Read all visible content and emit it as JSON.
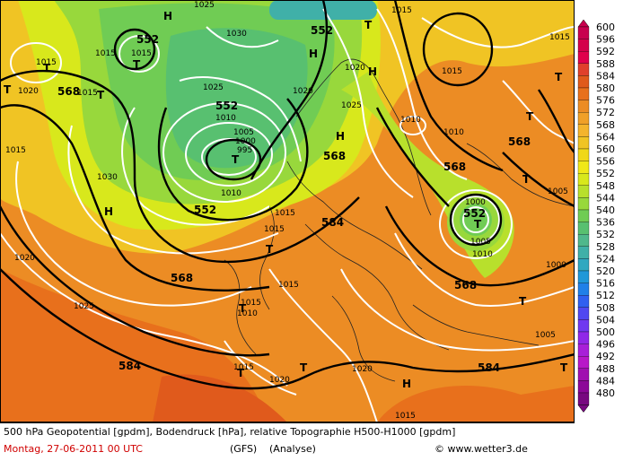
{
  "map": {
    "legend_values": [
      "600",
      "596",
      "592",
      "588",
      "584",
      "580",
      "576",
      "572",
      "568",
      "564",
      "560",
      "556",
      "552",
      "548",
      "544",
      "540",
      "536",
      "532",
      "528",
      "524",
      "520",
      "516",
      "512",
      "508",
      "504",
      "500",
      "496",
      "492",
      "488",
      "484",
      "480"
    ],
    "legend_colors": [
      "#c8004e",
      "#d4004a",
      "#e0004c",
      "#e0402c",
      "#e05a1c",
      "#e8701c",
      "#ec8c24",
      "#f0a028",
      "#f4b42c",
      "#f0c424",
      "#f0d818",
      "#f0e818",
      "#d8e81c",
      "#b8e02c",
      "#98d83c",
      "#70cc54",
      "#58c070",
      "#50b88c",
      "#40b0a8",
      "#30a8c0",
      "#2098d8",
      "#2080e8",
      "#3060f0",
      "#5048f0",
      "#7038f0",
      "#9028e8",
      "#a820d8",
      "#b818c8",
      "#a010b0",
      "#8c0898",
      "#780880"
    ],
    "geopotential_labels": [
      {
        "t": "552"
      },
      {
        "t": "552"
      },
      {
        "t": "552"
      },
      {
        "t": "552"
      },
      {
        "t": "552"
      },
      {
        "t": "568"
      },
      {
        "t": "568"
      },
      {
        "t": "568"
      },
      {
        "t": "568"
      },
      {
        "t": "568"
      },
      {
        "t": "568"
      },
      {
        "t": "584"
      },
      {
        "t": "584"
      },
      {
        "t": "584"
      }
    ],
    "pressure_labels": [
      {
        "t": "1025"
      },
      {
        "t": "1015"
      },
      {
        "t": "1015"
      },
      {
        "t": "1015"
      },
      {
        "t": "1030"
      },
      {
        "t": "1025"
      },
      {
        "t": "1020"
      },
      {
        "t": "1010"
      },
      {
        "t": "1005"
      },
      {
        "t": "1000"
      },
      {
        "t": "995"
      },
      {
        "t": "1010"
      },
      {
        "t": "1015"
      },
      {
        "t": "1015"
      },
      {
        "t": "1030"
      },
      {
        "t": "1020"
      },
      {
        "t": "1025"
      },
      {
        "t": "1015"
      },
      {
        "t": "1010"
      },
      {
        "t": "1015"
      },
      {
        "t": "1015"
      },
      {
        "t": "1015"
      },
      {
        "t": "1000"
      },
      {
        "t": "1005"
      },
      {
        "t": "1010"
      },
      {
        "t": "1000"
      },
      {
        "t": "1005"
      },
      {
        "t": "1005"
      },
      {
        "t": "1020"
      },
      {
        "t": "1020"
      },
      {
        "t": "1015"
      },
      {
        "t": "1015"
      },
      {
        "t": "1015"
      },
      {
        "t": "1010"
      },
      {
        "t": "1015"
      },
      {
        "t": "1025"
      },
      {
        "t": "1020"
      },
      {
        "t": "1020"
      },
      {
        "t": "1010"
      },
      {
        "t": "1015"
      }
    ],
    "centers": [
      {
        "t": "H"
      },
      {
        "t": "H"
      },
      {
        "t": "H"
      },
      {
        "t": "H"
      },
      {
        "t": "H"
      },
      {
        "t": "H"
      },
      {
        "t": "T"
      },
      {
        "t": "T"
      },
      {
        "t": "T"
      },
      {
        "t": "T"
      },
      {
        "t": "T"
      },
      {
        "t": "T"
      },
      {
        "t": "T"
      },
      {
        "t": "T"
      },
      {
        "t": "T"
      },
      {
        "t": "T"
      },
      {
        "t": "T"
      },
      {
        "t": "T"
      },
      {
        "t": "T"
      },
      {
        "t": "T"
      },
      {
        "t": "T"
      },
      {
        "t": "T"
      }
    ]
  },
  "footer": {
    "line1": "500 hPa Geopotential [gpdm], Bodendruck [hPa], relative Topographie H500-H1000 [gpdm]",
    "date": "Montag, 27-06-2011  00 UTC",
    "model": "(GFS)",
    "analysis": "(Analyse)",
    "credit": "© www.wetter3.de"
  }
}
